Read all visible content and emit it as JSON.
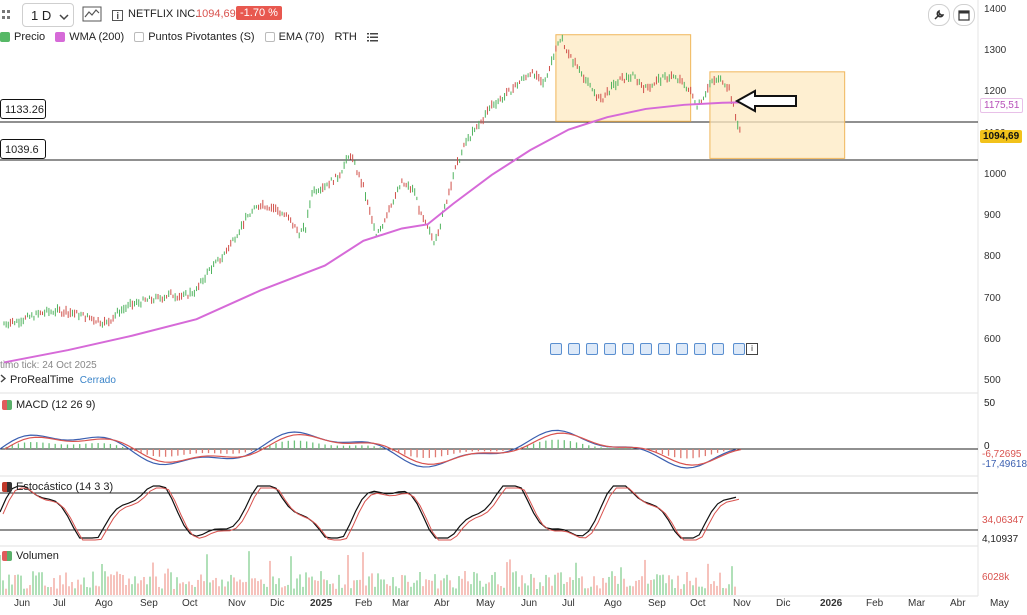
{
  "toolbar": {
    "timeframe": "1 D",
    "chevron": "chevron-down-icon",
    "symbol": "NETFLIX INC.",
    "price": "1094,69",
    "change": "-1.70 %"
  },
  "indicators": [
    {
      "label": "Precio",
      "color": "#56b866"
    },
    {
      "label": "WMA (200)",
      "color": "#d66ad8"
    },
    {
      "label": "Puntos Pivotantes (S)",
      "color": "#e8e8e8"
    },
    {
      "label": "EMA (70)",
      "color": "#e8e8e8"
    },
    {
      "label": "RTH",
      "color": ""
    }
  ],
  "levels": {
    "upper": "1133.26",
    "lower": "1039.6"
  },
  "axis_tags": {
    "wma": "1175,51",
    "last": "1094,69"
  },
  "last_tick": "timo tick: 24 Oct 2025",
  "provider": {
    "name": "ProRealTime",
    "status": "Cerrado"
  },
  "macd": {
    "title": "MACD (12 26 9)",
    "v1": "-6,72695",
    "v2": "-17,49618",
    "y_top": "50",
    "y_zero": "0"
  },
  "stoch": {
    "title": "Estocástico (14 3 3)",
    "v1": "34,06347",
    "v2": "4,10937"
  },
  "volume": {
    "title": "Volumen",
    "value": "6028k"
  },
  "chart_data": {
    "type": "bar",
    "title": "NETFLIX INC.",
    "y_ticks": [
      "1400",
      "1300",
      "1200",
      "1100",
      "1000",
      "900",
      "800",
      "700",
      "600",
      "500"
    ],
    "ylim": [
      500,
      1400
    ],
    "x_ticks": [
      "Jun",
      "Jul",
      "Ago",
      "Sep",
      "Oct",
      "Nov",
      "Dic",
      "2025",
      "Feb",
      "Mar",
      "Abr",
      "May",
      "Jun",
      "Jul",
      "Ago",
      "Sep",
      "Oct",
      "Nov",
      "Dic",
      "2026",
      "Feb",
      "Mar",
      "Abr",
      "May"
    ],
    "price_path": [
      [
        0,
        640
      ],
      [
        2,
        645
      ],
      [
        4,
        655
      ],
      [
        6,
        665
      ],
      [
        8,
        670
      ],
      [
        10,
        668
      ],
      [
        12,
        660
      ],
      [
        14,
        650
      ],
      [
        16,
        640
      ],
      [
        18,
        670
      ],
      [
        20,
        685
      ],
      [
        22,
        695
      ],
      [
        24,
        700
      ],
      [
        26,
        710
      ],
      [
        28,
        705
      ],
      [
        30,
        720
      ],
      [
        32,
        770
      ],
      [
        34,
        800
      ],
      [
        36,
        850
      ],
      [
        38,
        900
      ],
      [
        40,
        930
      ],
      [
        42,
        920
      ],
      [
        44,
        900
      ],
      [
        46,
        860
      ],
      [
        47,
        870
      ],
      [
        48,
        960
      ],
      [
        50,
        975
      ],
      [
        52,
        995
      ],
      [
        54,
        1050
      ],
      [
        55,
        1010
      ],
      [
        56,
        970
      ],
      [
        58,
        850
      ],
      [
        59,
        880
      ],
      [
        60,
        920
      ],
      [
        62,
        980
      ],
      [
        64,
        960
      ],
      [
        65,
        900
      ],
      [
        66,
        870
      ],
      [
        67,
        840
      ],
      [
        68,
        880
      ],
      [
        70,
        1000
      ],
      [
        72,
        1080
      ],
      [
        74,
        1120
      ],
      [
        76,
        1170
      ],
      [
        78,
        1190
      ],
      [
        80,
        1220
      ],
      [
        82,
        1250
      ],
      [
        84,
        1220
      ],
      [
        85,
        1260
      ],
      [
        86,
        1310
      ],
      [
        87,
        1330
      ],
      [
        88,
        1290
      ],
      [
        90,
        1250
      ],
      [
        91,
        1220
      ],
      [
        92,
        1200
      ],
      [
        93,
        1180
      ],
      [
        94,
        1200
      ],
      [
        96,
        1230
      ],
      [
        98,
        1240
      ],
      [
        100,
        1210
      ],
      [
        102,
        1230
      ],
      [
        104,
        1240
      ],
      [
        106,
        1220
      ],
      [
        107,
        1200
      ],
      [
        108,
        1170
      ],
      [
        109,
        1190
      ],
      [
        110,
        1220
      ],
      [
        111,
        1230
      ],
      [
        112,
        1230
      ],
      [
        113,
        1210
      ],
      [
        114,
        1140
      ],
      [
        115,
        1095
      ]
    ],
    "wma": [
      [
        0,
        545
      ],
      [
        10,
        575
      ],
      [
        20,
        610
      ],
      [
        30,
        650
      ],
      [
        40,
        720
      ],
      [
        50,
        780
      ],
      [
        56,
        840
      ],
      [
        62,
        870
      ],
      [
        66,
        880
      ],
      [
        70,
        930
      ],
      [
        76,
        1000
      ],
      [
        82,
        1060
      ],
      [
        88,
        1110
      ],
      [
        94,
        1140
      ],
      [
        100,
        1160
      ],
      [
        106,
        1170
      ],
      [
        112,
        1175
      ],
      [
        115,
        1176
      ]
    ],
    "boxes": [
      {
        "x0": 86,
        "x1": 107,
        "y0": 1130,
        "y1": 1340
      },
      {
        "x0": 110,
        "x1": 131,
        "y0": 1040,
        "y1": 1250
      }
    ],
    "series": [
      {
        "name": "MACD (12 26 9)"
      },
      {
        "name": "Estocástico (14 3 3)"
      },
      {
        "name": "Volumen"
      }
    ]
  },
  "icons": {
    "settings": "wrench-icon",
    "screenshot": "calendar-icon",
    "event_markers": "news-marker-icon",
    "info": "info-icon"
  }
}
